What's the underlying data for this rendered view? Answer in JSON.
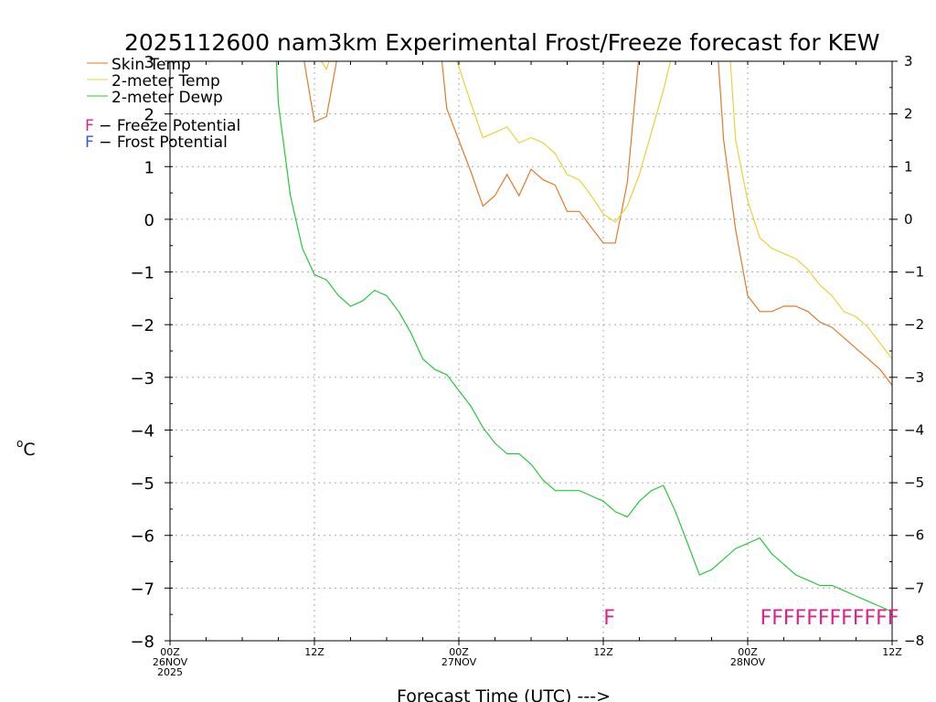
{
  "chart_data": {
    "type": "line",
    "title": "2025112600 nam3km Experimental Frost/Freeze forecast for KEW",
    "xlabel": "Forecast Time (UTC) --->",
    "ylabel_unit": "o",
    "ylabel_letter": "C",
    "ylim": [
      -8,
      3
    ],
    "yticks": [
      3,
      2,
      1,
      0,
      -1,
      -2,
      -3,
      -4,
      -5,
      -6,
      -7,
      -8
    ],
    "ytick_labels_left": [
      "3",
      "2",
      "1",
      "0",
      "−1",
      "−2",
      "−3",
      "−4",
      "−5",
      "−6",
      "−7",
      "−8"
    ],
    "ytick_labels_right": [
      "3",
      "2",
      "1",
      "0",
      "−1",
      "−2",
      "−3",
      "−4",
      "−5",
      "−6",
      "−7",
      "−8"
    ],
    "xlim": [
      0,
      60
    ],
    "xticks": [
      {
        "x": 0,
        "lines": [
          "00Z",
          "26NOV",
          "2025"
        ]
      },
      {
        "x": 12,
        "lines": [
          "12Z"
        ]
      },
      {
        "x": 24,
        "lines": [
          "00Z",
          "27NOV"
        ]
      },
      {
        "x": 36,
        "lines": [
          "12Z"
        ]
      },
      {
        "x": 48,
        "lines": [
          "00Z",
          "28NOV"
        ]
      },
      {
        "x": 60,
        "lines": [
          "12Z"
        ]
      }
    ],
    "grid": true,
    "series": [
      {
        "name": "Skin Temp",
        "color": "#e07a2e",
        "points": [
          [
            11,
            3.2
          ],
          [
            12,
            1.85
          ],
          [
            13,
            1.95
          ],
          [
            14,
            3.2
          ],
          [
            22.5,
            3.2
          ],
          [
            23,
            2.1
          ],
          [
            24,
            1.5
          ],
          [
            25,
            0.9
          ],
          [
            26,
            0.25
          ],
          [
            27,
            0.45
          ],
          [
            28,
            0.85
          ],
          [
            29,
            0.45
          ],
          [
            30,
            0.95
          ],
          [
            31,
            0.75
          ],
          [
            32,
            0.65
          ],
          [
            33,
            0.15
          ],
          [
            34,
            0.15
          ],
          [
            35,
            -0.15
          ],
          [
            36,
            -0.45
          ],
          [
            37,
            -0.45
          ],
          [
            38,
            0.7
          ],
          [
            39,
            3.2
          ],
          [
            45.5,
            3.2
          ],
          [
            46,
            1.5
          ],
          [
            47,
            -0.2
          ],
          [
            48,
            -1.45
          ],
          [
            49,
            -1.75
          ],
          [
            50,
            -1.75
          ],
          [
            51,
            -1.65
          ],
          [
            52,
            -1.65
          ],
          [
            53,
            -1.75
          ],
          [
            54,
            -1.95
          ],
          [
            55,
            -2.05
          ],
          [
            56,
            -2.25
          ],
          [
            57,
            -2.45
          ],
          [
            58,
            -2.65
          ],
          [
            59,
            -2.85
          ],
          [
            60,
            -3.15
          ]
        ]
      },
      {
        "name": "2-meter Temp",
        "color": "#e8d23a",
        "points": [
          [
            12,
            3.2
          ],
          [
            13,
            2.85
          ],
          [
            13.5,
            3.2
          ],
          [
            23.5,
            3.2
          ],
          [
            24,
            2.9
          ],
          [
            25,
            2.2
          ],
          [
            26,
            1.55
          ],
          [
            27,
            1.65
          ],
          [
            28,
            1.75
          ],
          [
            29,
            1.45
          ],
          [
            30,
            1.55
          ],
          [
            31,
            1.45
          ],
          [
            32,
            1.25
          ],
          [
            33,
            0.85
          ],
          [
            34,
            0.75
          ],
          [
            35,
            0.45
          ],
          [
            36,
            0.1
          ],
          [
            37,
            -0.05
          ],
          [
            38,
            0.25
          ],
          [
            39,
            0.85
          ],
          [
            40,
            1.65
          ],
          [
            41,
            2.45
          ],
          [
            41.8,
            3.2
          ],
          [
            46.5,
            3.2
          ],
          [
            47,
            1.5
          ],
          [
            48,
            0.35
          ],
          [
            49,
            -0.35
          ],
          [
            50,
            -0.55
          ],
          [
            51,
            -0.65
          ],
          [
            52,
            -0.75
          ],
          [
            53,
            -0.95
          ],
          [
            54,
            -1.25
          ],
          [
            55,
            -1.45
          ],
          [
            56,
            -1.75
          ],
          [
            57,
            -1.85
          ],
          [
            58,
            -2.05
          ],
          [
            59,
            -2.35
          ],
          [
            60,
            -2.65
          ]
        ]
      },
      {
        "name": "2-meter Dewp",
        "color": "#27c83a",
        "points": [
          [
            8.8,
            3.2
          ],
          [
            9,
            2.2
          ],
          [
            10,
            0.45
          ],
          [
            11,
            -0.55
          ],
          [
            12,
            -1.05
          ],
          [
            13,
            -1.15
          ],
          [
            14,
            -1.45
          ],
          [
            15,
            -1.65
          ],
          [
            16,
            -1.55
          ],
          [
            17,
            -1.35
          ],
          [
            18,
            -1.45
          ],
          [
            19,
            -1.75
          ],
          [
            20,
            -2.15
          ],
          [
            21,
            -2.65
          ],
          [
            22,
            -2.85
          ],
          [
            23,
            -2.95
          ],
          [
            24,
            -3.25
          ],
          [
            25,
            -3.55
          ],
          [
            26,
            -3.95
          ],
          [
            27,
            -4.25
          ],
          [
            28,
            -4.45
          ],
          [
            29,
            -4.45
          ],
          [
            30,
            -4.65
          ],
          [
            31,
            -4.95
          ],
          [
            32,
            -5.15
          ],
          [
            33,
            -5.15
          ],
          [
            34,
            -5.15
          ],
          [
            35,
            -5.25
          ],
          [
            36,
            -5.35
          ],
          [
            37,
            -5.55
          ],
          [
            38,
            -5.65
          ],
          [
            39,
            -5.35
          ],
          [
            40,
            -5.15
          ],
          [
            41,
            -5.05
          ],
          [
            42,
            -5.55
          ],
          [
            43,
            -6.15
          ],
          [
            44,
            -6.75
          ],
          [
            45,
            -6.65
          ],
          [
            46,
            -6.45
          ],
          [
            47,
            -6.25
          ],
          [
            48,
            -6.15
          ],
          [
            49,
            -6.05
          ],
          [
            50,
            -6.35
          ],
          [
            51,
            -6.55
          ],
          [
            52,
            -6.75
          ],
          [
            53,
            -6.85
          ],
          [
            54,
            -6.95
          ],
          [
            55,
            -6.95
          ],
          [
            56,
            -7.05
          ],
          [
            57,
            -7.15
          ],
          [
            58,
            -7.25
          ],
          [
            59,
            -7.35
          ],
          [
            60,
            -7.45
          ]
        ]
      }
    ],
    "legend": [
      {
        "label": "Skin Temp",
        "color": "#e07a2e"
      },
      {
        "label": "2-meter Temp",
        "color": "#e8d23a"
      },
      {
        "label": "2-meter Dewp",
        "color": "#27c83a"
      }
    ],
    "potential_legend": [
      {
        "letter": "F",
        "text": " − Freeze Potential",
        "color": "#d6248a"
      },
      {
        "letter": "F",
        "text": " − Frost Potential",
        "color": "#3a54e0"
      }
    ],
    "freeze_flags": {
      "color": "#d6248a",
      "marks": [
        {
          "x": 36.5,
          "text": "F"
        },
        {
          "x": 54.8,
          "text": "FFFFFFFFFFFF"
        }
      ]
    }
  }
}
